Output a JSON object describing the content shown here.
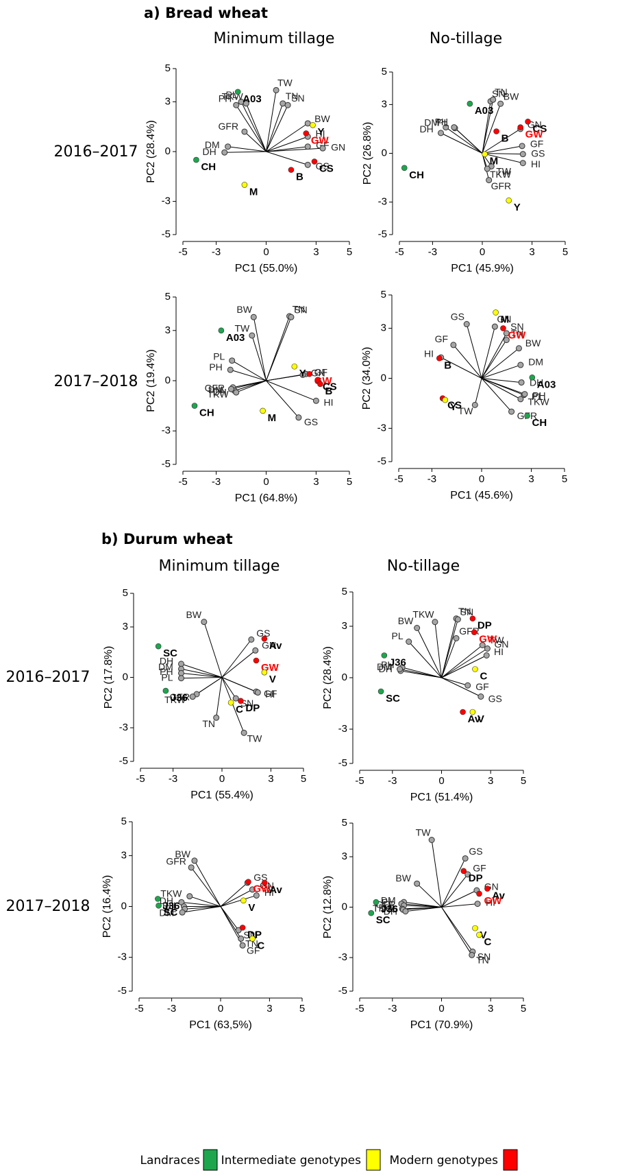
{
  "sections": [
    {
      "title": "a) Bread wheat",
      "columns": [
        "Minimum tillage",
        "No-tillage"
      ],
      "rows": [
        "2016–2017",
        "2017–2018"
      ]
    },
    {
      "title": "b) Durum wheat",
      "columns": [
        "Minimum tillage",
        "No-tillage"
      ],
      "rows": [
        "2016–2017",
        "2017–2018"
      ]
    }
  ],
  "legend": [
    {
      "label": "Landraces",
      "color": "#1ea64e"
    },
    {
      "label": "Intermediate genotypes",
      "color": "#ffff00"
    },
    {
      "label": "Modern genotypes",
      "color": "#ff0000"
    }
  ],
  "chart_data": [
    {
      "type": "biplot",
      "xlabel": "PC1 (55.0%)",
      "ylabel": "PC2 (28.4%)",
      "xlim": [
        -5,
        5
      ],
      "ylim": [
        -5,
        5
      ],
      "xticks": [
        -5,
        -3,
        0,
        3,
        5
      ],
      "yticks": [
        -5,
        -3,
        0,
        3,
        5
      ],
      "traits": {
        "color": "#a6a6a6",
        "labels": [
          "TW",
          "TN",
          "SN",
          "BW",
          "HI",
          "GF",
          "GN",
          "GS",
          "PL",
          "PH",
          "TKW",
          "GFR",
          "DM",
          "DH"
        ],
        "x": [
          0.6,
          1.0,
          1.3,
          2.5,
          2.5,
          2.5,
          3.4,
          2.5,
          -1.5,
          -1.8,
          -1.2,
          -1.3,
          -2.3,
          -2.5
        ],
        "y": [
          3.7,
          2.9,
          2.8,
          1.7,
          0.9,
          0.3,
          0.2,
          -0.8,
          3.0,
          2.8,
          2.9,
          1.2,
          0.3,
          -0.05
        ]
      },
      "genotypes": {
        "labels": [
          "A03",
          "CH",
          "Y",
          "GW",
          "CS",
          "B",
          "M"
        ],
        "x": [
          -1.7,
          -4.2,
          2.8,
          2.4,
          2.9,
          1.5,
          -1.3
        ],
        "y": [
          3.6,
          -0.5,
          1.6,
          1.1,
          -0.6,
          -1.1,
          -2.0
        ],
        "colors": [
          "#1ea64e",
          "#1ea64e",
          "#ffff00",
          "#ff0000",
          "#ff0000",
          "#ff0000",
          "#ffff00"
        ],
        "label_colors": [
          "#000000",
          "#000000",
          "#000000",
          "#ff0000",
          "#000000",
          "#000000",
          "#000000"
        ]
      }
    },
    {
      "type": "biplot",
      "xlabel": "PC1 (45.9%)",
      "ylabel": "PC2 (26.8%)",
      "xlim": [
        -5,
        5
      ],
      "ylim": [
        -5,
        5
      ],
      "xticks": [
        -5,
        -3,
        0,
        3,
        5
      ],
      "yticks": [
        -5,
        -3,
        0,
        3,
        5
      ],
      "traits": {
        "color": "#a6a6a6",
        "labels": [
          "SN",
          "TN",
          "BW",
          "DM",
          "PL",
          "PH",
          "DH",
          "GN",
          "GF",
          "GS",
          "HI",
          "TW",
          "TKW",
          "GFR"
        ],
        "x": [
          0.5,
          0.65,
          1.1,
          -2.2,
          -1.65,
          -1.7,
          -2.5,
          2.3,
          2.4,
          2.45,
          2.45,
          0.55,
          0.3,
          0.4
        ],
        "y": [
          3.2,
          3.3,
          3.05,
          1.6,
          1.55,
          1.6,
          1.25,
          1.5,
          0.45,
          -0.05,
          -0.6,
          -0.8,
          -0.95,
          -1.65
        ]
      },
      "genotypes": {
        "labels": [
          "A03",
          "CH",
          "CS",
          "GW",
          "B",
          "M",
          "Y"
        ],
        "x": [
          -0.75,
          -4.7,
          2.75,
          2.3,
          0.85,
          0.15,
          1.6
        ],
        "y": [
          3.05,
          -0.9,
          1.95,
          1.6,
          1.35,
          -0.05,
          -2.9
        ],
        "colors": [
          "#1ea64e",
          "#1ea64e",
          "#ff0000",
          "#ff0000",
          "#ff0000",
          "#ffff00",
          "#ffff00"
        ],
        "label_colors": [
          "#000000",
          "#000000",
          "#000000",
          "#ff0000",
          "#000000",
          "#000000",
          "#000000"
        ]
      }
    },
    {
      "type": "biplot",
      "xlabel": "PC1 (64.8%)",
      "ylabel": "PC2 (19.4%)",
      "xlim": [
        -5,
        5
      ],
      "ylim": [
        -5,
        5
      ],
      "xticks": [
        -5,
        -3,
        0,
        3,
        5
      ],
      "yticks": [
        -5,
        -3,
        0,
        3,
        5
      ],
      "traits": {
        "color": "#a6a6a6",
        "labels": [
          "BW",
          "TW",
          "TN",
          "SN",
          "PL",
          "PH",
          "GFR",
          "DH",
          "TKW",
          "DM",
          "GF",
          "GN",
          "HI",
          "GS"
        ],
        "x": [
          -0.75,
          -0.85,
          1.4,
          1.5,
          -2.05,
          -2.15,
          -2.0,
          -1.9,
          -1.8,
          -2.1,
          2.4,
          2.2,
          3.0,
          1.95
        ],
        "y": [
          3.8,
          2.7,
          3.85,
          3.8,
          1.2,
          0.65,
          -0.4,
          -0.6,
          -0.7,
          -0.5,
          0.4,
          0.35,
          -1.2,
          -2.2
        ]
      },
      "genotypes": {
        "labels": [
          "A03",
          "CH",
          "Y",
          "GW",
          "CS",
          "B",
          "M"
        ],
        "x": [
          -2.7,
          -4.3,
          1.7,
          2.6,
          3.1,
          3.25,
          -0.2
        ],
        "y": [
          3.0,
          -1.5,
          0.85,
          0.4,
          0.05,
          -0.2,
          -1.8
        ],
        "colors": [
          "#1ea64e",
          "#1ea64e",
          "#ffff00",
          "#ff0000",
          "#ff0000",
          "#ff0000",
          "#ffff00"
        ],
        "label_colors": [
          "#000000",
          "#000000",
          "#000000",
          "#ff0000",
          "#000000",
          "#000000",
          "#000000"
        ]
      }
    },
    {
      "type": "biplot",
      "xlabel": "PC1 (45.6%)",
      "ylabel": "PC2 (34.0%)",
      "xlim": [
        -5,
        5
      ],
      "ylim": [
        -5,
        5
      ],
      "xticks": [
        -5,
        -3,
        0,
        3,
        5
      ],
      "yticks": [
        -5,
        -3,
        0,
        3,
        5
      ],
      "traits": {
        "color": "#a6a6a6",
        "labels": [
          "GS",
          "GF",
          "GN",
          "SN",
          "TN",
          "BW",
          "DM",
          "DH",
          "PL",
          "PH",
          "TKW",
          "GFR",
          "TW",
          "HI"
        ],
        "x": [
          -0.9,
          -1.7,
          0.8,
          1.5,
          1.5,
          2.25,
          2.35,
          2.4,
          2.55,
          2.6,
          2.35,
          1.8,
          -0.4,
          -2.45
        ],
        "y": [
          3.25,
          2.0,
          3.1,
          2.7,
          2.3,
          1.8,
          0.8,
          -0.25,
          -1.0,
          -0.95,
          -1.25,
          -2.0,
          -1.6,
          1.25
        ]
      },
      "genotypes": {
        "labels": [
          "M",
          "GW",
          "B",
          "A03",
          "CS",
          "Y",
          "CH"
        ],
        "x": [
          0.85,
          1.3,
          -2.55,
          3.05,
          -2.35,
          -2.2,
          2.75
        ],
        "y": [
          3.95,
          3.0,
          1.2,
          0.05,
          -1.2,
          -1.3,
          -2.25
        ],
        "colors": [
          "#ffff00",
          "#ff0000",
          "#ff0000",
          "#1ea64e",
          "#ff0000",
          "#ffff00",
          "#1ea64e"
        ],
        "label_colors": [
          "#000000",
          "#ff0000",
          "#000000",
          "#000000",
          "#000000",
          "#000000",
          "#000000"
        ]
      }
    },
    {
      "type": "biplot",
      "xlabel": "PC1 (55.4%)",
      "ylabel": "PC2 (17.8%)",
      "xlim": [
        -5,
        5
      ],
      "ylim": [
        -5,
        5
      ],
      "xticks": [
        -5,
        -3,
        0,
        3,
        5
      ],
      "yticks": [
        -5,
        -3,
        0,
        3,
        5
      ],
      "traits": {
        "color": "#a6a6a6",
        "labels": [
          "BW",
          "GS",
          "GN",
          "GF",
          "HI",
          "DH",
          "DM",
          "PH",
          "PL",
          "GFR",
          "TKW",
          "TN",
          "SN",
          "TW"
        ],
        "x": [
          -1.1,
          1.8,
          2.05,
          2.1,
          2.2,
          -2.5,
          -2.5,
          -2.5,
          -2.5,
          -1.55,
          -1.8,
          -0.35,
          0.85,
          1.35
        ],
        "y": [
          3.3,
          2.25,
          1.6,
          -0.85,
          -0.9,
          0.8,
          0.5,
          0.25,
          -0.05,
          -1.0,
          -1.15,
          -2.4,
          -1.25,
          -3.3
        ]
      },
      "genotypes": {
        "labels": [
          "SC",
          "J36",
          "Av",
          "GW",
          "V",
          "DP",
          "C"
        ],
        "x": [
          -3.9,
          -3.45,
          2.6,
          2.1,
          2.6,
          1.15,
          0.55
        ],
        "y": [
          1.85,
          -0.8,
          2.3,
          1.0,
          0.3,
          -1.4,
          -1.5
        ],
        "colors": [
          "#1ea64e",
          "#1ea64e",
          "#ff0000",
          "#ff0000",
          "#ffff00",
          "#ff0000",
          "#ffff00"
        ],
        "label_colors": [
          "#000000",
          "#000000",
          "#000000",
          "#ff0000",
          "#000000",
          "#000000",
          "#000000"
        ]
      }
    },
    {
      "type": "biplot",
      "xlabel": "PC1 (51.4%)",
      "ylabel": "PC2 (28.4%)",
      "xlim": [
        -5,
        5
      ],
      "ylim": [
        -5,
        5
      ],
      "xticks": [
        -5,
        -3,
        0,
        3,
        5
      ],
      "yticks": [
        -5,
        -3,
        0,
        3,
        5
      ],
      "traits": {
        "color": "#a6a6a6",
        "labels": [
          "BW",
          "TKW",
          "TN",
          "SN",
          "GFR",
          "PL",
          "PH",
          "DH",
          "DM",
          "TW",
          "GN",
          "HI",
          "GF",
          "GS"
        ],
        "x": [
          -1.5,
          -0.4,
          0.9,
          1.0,
          0.9,
          -2.0,
          -2.4,
          -2.5,
          -2.55,
          2.5,
          2.8,
          2.75,
          1.6,
          2.4
        ],
        "y": [
          2.9,
          3.25,
          3.45,
          3.4,
          2.3,
          2.1,
          0.6,
          0.4,
          0.5,
          1.9,
          1.7,
          1.3,
          -0.45,
          -1.1
        ]
      },
      "genotypes": {
        "labels": [
          "DP",
          "GW",
          "C",
          "J36",
          "SC",
          "Av",
          "V"
        ],
        "x": [
          1.9,
          2.0,
          2.05,
          -3.5,
          -3.7,
          1.3,
          1.9
        ],
        "y": [
          3.45,
          2.65,
          0.5,
          1.3,
          -0.8,
          -2.0,
          -2.0
        ],
        "colors": [
          "#ff0000",
          "#ff0000",
          "#ffff00",
          "#1ea64e",
          "#1ea64e",
          "#ff0000",
          "#ffff00"
        ],
        "label_colors": [
          "#000000",
          "#ff0000",
          "#000000",
          "#000000",
          "#000000",
          "#000000",
          "#000000"
        ]
      }
    },
    {
      "type": "biplot",
      "xlabel": "PC1 (63,5%)",
      "ylabel": "PC2 (16.4%)",
      "xlim": [
        -5,
        5
      ],
      "ylim": [
        -5,
        5
      ],
      "xticks": [
        -5,
        -3,
        0,
        3,
        5
      ],
      "yticks": [
        -5,
        -3,
        0,
        3,
        5
      ],
      "traits": {
        "color": "#a6a6a6",
        "labels": [
          "BW",
          "GFR",
          "GS",
          "GN",
          "HI",
          "TKW",
          "DH",
          "PH",
          "PL",
          "DM",
          "SN",
          "TN",
          "GF"
        ],
        "x": [
          -1.6,
          -1.8,
          1.65,
          1.95,
          2.2,
          -1.9,
          -2.4,
          -2.25,
          -2.2,
          -2.35,
          1.1,
          1.25,
          1.35
        ],
        "y": [
          2.7,
          2.3,
          1.4,
          1.0,
          0.65,
          0.6,
          0.25,
          0,
          -0.15,
          -0.35,
          -1.4,
          -1.9,
          -2.3
        ]
      },
      "genotypes": {
        "labels": [
          "J36",
          "SC",
          "GW",
          "Av",
          "V",
          "DP",
          "C"
        ],
        "x": [
          -3.85,
          -3.8,
          1.7,
          2.7,
          1.4,
          1.35,
          1.95
        ],
        "y": [
          0.45,
          0.05,
          1.45,
          1.4,
          0.35,
          -1.25,
          -1.9
        ],
        "colors": [
          "#1ea64e",
          "#1ea64e",
          "#ff0000",
          "#ff0000",
          "#ffff00",
          "#ff0000",
          "#ffff00"
        ],
        "label_colors": [
          "#000000",
          "#000000",
          "#ff0000",
          "#000000",
          "#000000",
          "#000000",
          "#000000"
        ]
      }
    },
    {
      "type": "biplot",
      "xlabel": "PC1 (70.9%)",
      "ylabel": "PC2 (12.8%)",
      "xlim": [
        -5,
        5
      ],
      "ylim": [
        -5,
        5
      ],
      "xticks": [
        -5,
        -3,
        0,
        3,
        5
      ],
      "yticks": [
        -5,
        -3,
        0,
        3,
        5
      ],
      "traits": {
        "color": "#a6a6a6",
        "labels": [
          "TW",
          "GS",
          "GF",
          "GN",
          "HI",
          "BW",
          "DM",
          "PL",
          "GFR",
          "TKW",
          "PH",
          "DH",
          "SN",
          "TN"
        ],
        "x": [
          -0.6,
          1.45,
          1.6,
          2.15,
          2.2,
          -1.5,
          -2.3,
          -2.45,
          -2.3,
          -2.4,
          -2.35,
          -2.2,
          1.9,
          1.85
        ],
        "y": [
          4.0,
          2.9,
          1.95,
          1.0,
          0.2,
          1.4,
          0.3,
          0.2,
          0.1,
          -0.1,
          -0.15,
          -0.25,
          -2.65,
          -2.85
        ]
      },
      "genotypes": {
        "labels": [
          "DP",
          "Av",
          "GW",
          "J36",
          "SC",
          "V",
          "C"
        ],
        "x": [
          1.35,
          2.8,
          2.3,
          -4.0,
          -4.3,
          2.05,
          2.3
        ],
        "y": [
          2.15,
          1.1,
          0.8,
          0.3,
          -0.35,
          -1.25,
          -1.65
        ],
        "colors": [
          "#ff0000",
          "#ff0000",
          "#ff0000",
          "#1ea64e",
          "#1ea64e",
          "#ffff00",
          "#ffff00"
        ],
        "label_colors": [
          "#000000",
          "#000000",
          "#ff0000",
          "#000000",
          "#000000",
          "#000000",
          "#000000"
        ]
      }
    }
  ]
}
